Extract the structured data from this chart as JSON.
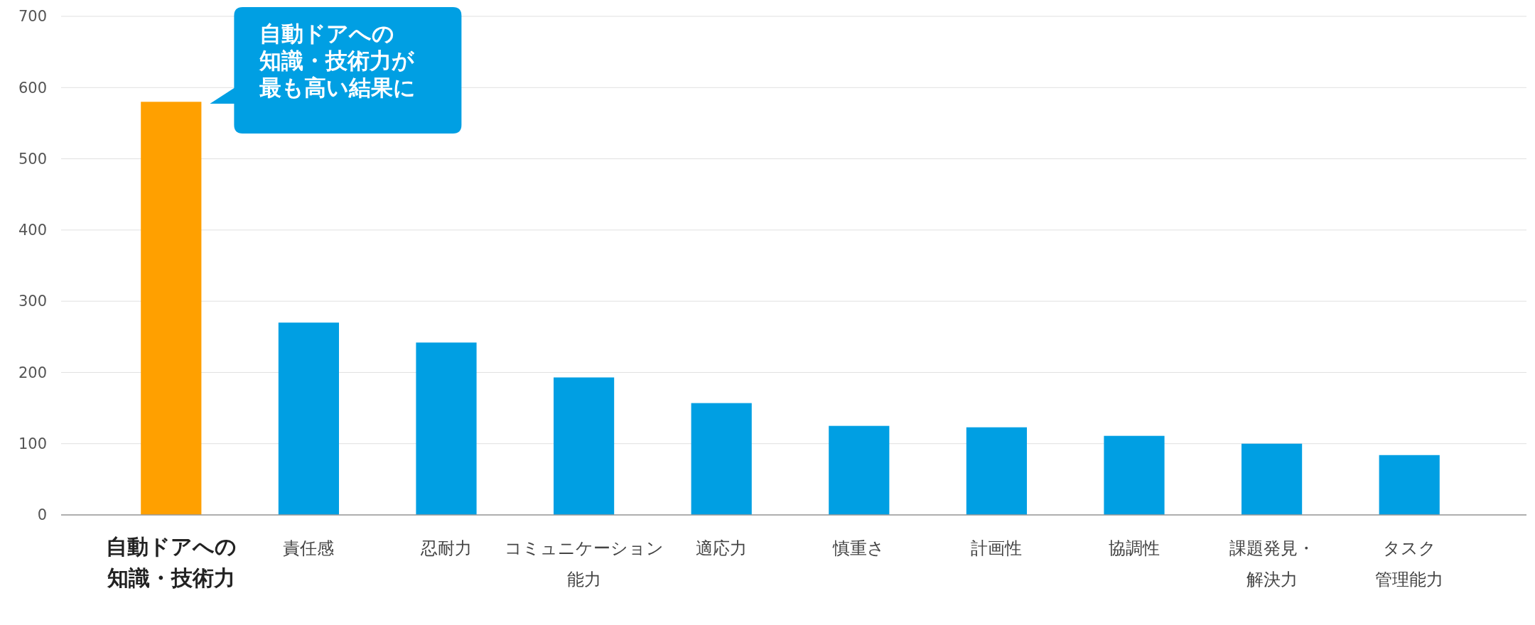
{
  "chart_data": {
    "type": "bar",
    "categories": [
      "自動ドアへの知識・技術力",
      "責任感",
      "忍耐力",
      "コミュニケーション能力",
      "適応力",
      "慎重さ",
      "計画性",
      "協調性",
      "課題発見・解決力",
      "タスク管理能力"
    ],
    "values": [
      580,
      270,
      242,
      193,
      157,
      125,
      123,
      111,
      100,
      84
    ],
    "colors": [
      "#ffa000",
      "#009fe3",
      "#009fe3",
      "#009fe3",
      "#009fe3",
      "#009fe3",
      "#009fe3",
      "#009fe3",
      "#009fe3",
      "#009fe3"
    ],
    "ylim": [
      0,
      700
    ],
    "yticks": [
      0,
      100,
      200,
      300,
      400,
      500,
      600,
      700
    ],
    "grid": "y",
    "annotations": [
      "自動ドアへの知識・技術力が最も高い結果に"
    ]
  }
}
